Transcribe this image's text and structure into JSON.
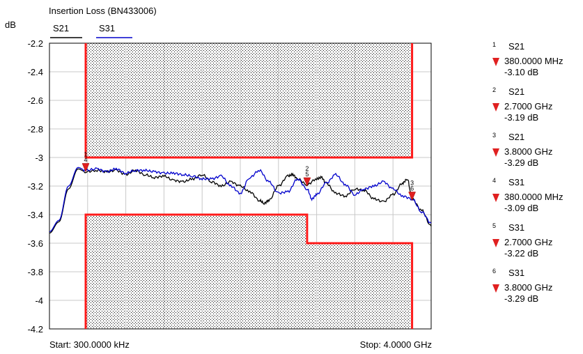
{
  "header": {
    "title": "Insertion Loss (BN433006)",
    "unit": "dB",
    "trace_labels": [
      "S21",
      "S31"
    ]
  },
  "footer": {
    "start": "Start: 300.0000 kHz",
    "stop": "Stop: 4.0000 GHz"
  },
  "colors": {
    "S21": "#000000",
    "S31": "#0000cc",
    "limit": "#ff1a1a",
    "marker": "#e02020",
    "grid": "#c8c8c8"
  },
  "chart_data": {
    "type": "line",
    "title": "Insertion Loss (BN433006)",
    "ylabel": "dB",
    "xlabel": "",
    "x_start_ghz": 0.0003,
    "x_stop_ghz": 4.0,
    "ylim": [
      -4.2,
      -2.2
    ],
    "y_ticks": [
      "-2.2",
      "-2.4",
      "-2.6",
      "-2.8",
      "-3",
      "-3.2",
      "-3.4",
      "-3.6",
      "-3.8",
      "-4",
      "-4.2"
    ],
    "grid": true,
    "series": [
      {
        "name": "S21",
        "color": "#000000",
        "points": [
          [
            0.0003,
            -3.53
          ],
          [
            0.1,
            -3.45
          ],
          [
            0.2,
            -3.22
          ],
          [
            0.3,
            -3.08
          ],
          [
            0.38,
            -3.1
          ],
          [
            0.5,
            -3.09
          ],
          [
            0.6,
            -3.1
          ],
          [
            0.7,
            -3.09
          ],
          [
            0.8,
            -3.12
          ],
          [
            0.9,
            -3.09
          ],
          [
            1.0,
            -3.12
          ],
          [
            1.1,
            -3.14
          ],
          [
            1.2,
            -3.13
          ],
          [
            1.3,
            -3.16
          ],
          [
            1.4,
            -3.17
          ],
          [
            1.5,
            -3.15
          ],
          [
            1.6,
            -3.12
          ],
          [
            1.7,
            -3.17
          ],
          [
            1.8,
            -3.2
          ],
          [
            1.9,
            -3.17
          ],
          [
            2.0,
            -3.2
          ],
          [
            2.1,
            -3.24
          ],
          [
            2.2,
            -3.3
          ],
          [
            2.25,
            -3.32
          ],
          [
            2.3,
            -3.3
          ],
          [
            2.4,
            -3.2
          ],
          [
            2.5,
            -3.13
          ],
          [
            2.55,
            -3.12
          ],
          [
            2.6,
            -3.15
          ],
          [
            2.7,
            -3.19
          ],
          [
            2.8,
            -3.15
          ],
          [
            2.85,
            -3.14
          ],
          [
            2.9,
            -3.18
          ],
          [
            3.0,
            -3.25
          ],
          [
            3.1,
            -3.27
          ],
          [
            3.2,
            -3.22
          ],
          [
            3.3,
            -3.23
          ],
          [
            3.4,
            -3.29
          ],
          [
            3.5,
            -3.31
          ],
          [
            3.6,
            -3.26
          ],
          [
            3.7,
            -3.18
          ],
          [
            3.75,
            -3.15
          ],
          [
            3.8,
            -3.29
          ],
          [
            3.9,
            -3.37
          ],
          [
            4.0,
            -3.48
          ]
        ]
      },
      {
        "name": "S31",
        "color": "#0000cc",
        "points": [
          [
            0.0003,
            -3.52
          ],
          [
            0.1,
            -3.44
          ],
          [
            0.2,
            -3.2
          ],
          [
            0.3,
            -3.07
          ],
          [
            0.38,
            -3.09
          ],
          [
            0.5,
            -3.08
          ],
          [
            0.6,
            -3.1
          ],
          [
            0.7,
            -3.08
          ],
          [
            0.8,
            -3.11
          ],
          [
            0.9,
            -3.09
          ],
          [
            1.0,
            -3.09
          ],
          [
            1.1,
            -3.1
          ],
          [
            1.2,
            -3.11
          ],
          [
            1.3,
            -3.11
          ],
          [
            1.4,
            -3.12
          ],
          [
            1.5,
            -3.13
          ],
          [
            1.6,
            -3.15
          ],
          [
            1.7,
            -3.15
          ],
          [
            1.8,
            -3.13
          ],
          [
            1.9,
            -3.2
          ],
          [
            2.0,
            -3.25
          ],
          [
            2.1,
            -3.14
          ],
          [
            2.2,
            -3.09
          ],
          [
            2.3,
            -3.17
          ],
          [
            2.4,
            -3.25
          ],
          [
            2.5,
            -3.24
          ],
          [
            2.6,
            -3.15
          ],
          [
            2.7,
            -3.22
          ],
          [
            2.75,
            -3.29
          ],
          [
            2.8,
            -3.26
          ],
          [
            2.9,
            -3.18
          ],
          [
            3.0,
            -3.12
          ],
          [
            3.1,
            -3.19
          ],
          [
            3.2,
            -3.26
          ],
          [
            3.3,
            -3.22
          ],
          [
            3.4,
            -3.2
          ],
          [
            3.5,
            -3.17
          ],
          [
            3.6,
            -3.22
          ],
          [
            3.7,
            -3.27
          ],
          [
            3.8,
            -3.29
          ],
          [
            3.9,
            -3.38
          ],
          [
            4.0,
            -3.46
          ]
        ]
      }
    ],
    "limit_lines": [
      {
        "name": "upper",
        "points": [
          [
            0.38,
            -2.2
          ],
          [
            0.38,
            -3.0
          ],
          [
            3.8,
            -3.0
          ],
          [
            3.8,
            -2.2
          ]
        ]
      },
      {
        "name": "lower",
        "points": [
          [
            0.38,
            -4.2
          ],
          [
            0.38,
            -3.4
          ],
          [
            2.7,
            -3.4
          ],
          [
            2.7,
            -3.6
          ],
          [
            3.8,
            -3.6
          ],
          [
            3.8,
            -4.2
          ]
        ]
      }
    ],
    "markers": [
      {
        "id": "1",
        "trace": "S21",
        "freq": "380.0000 MHz",
        "value": "-3.10 dB",
        "x_ghz": 0.38,
        "y_db": -3.1
      },
      {
        "id": "2",
        "trace": "S21",
        "freq": "2.7000 GHz",
        "value": "-3.19 dB",
        "x_ghz": 2.7,
        "y_db": -3.19
      },
      {
        "id": "3",
        "trace": "S21",
        "freq": "3.8000 GHz",
        "value": "-3.29 dB",
        "x_ghz": 3.8,
        "y_db": -3.29
      },
      {
        "id": "4",
        "trace": "S31",
        "freq": "380.0000 MHz",
        "value": "-3.09 dB",
        "x_ghz": 0.38,
        "y_db": -3.09
      },
      {
        "id": "5",
        "trace": "S31",
        "freq": "2.7000 GHz",
        "value": "-3.22 dB",
        "x_ghz": 2.7,
        "y_db": -3.22
      },
      {
        "id": "6",
        "trace": "S31",
        "freq": "3.8000 GHz",
        "value": "-3.29 dB",
        "x_ghz": 3.8,
        "y_db": -3.29
      }
    ]
  }
}
